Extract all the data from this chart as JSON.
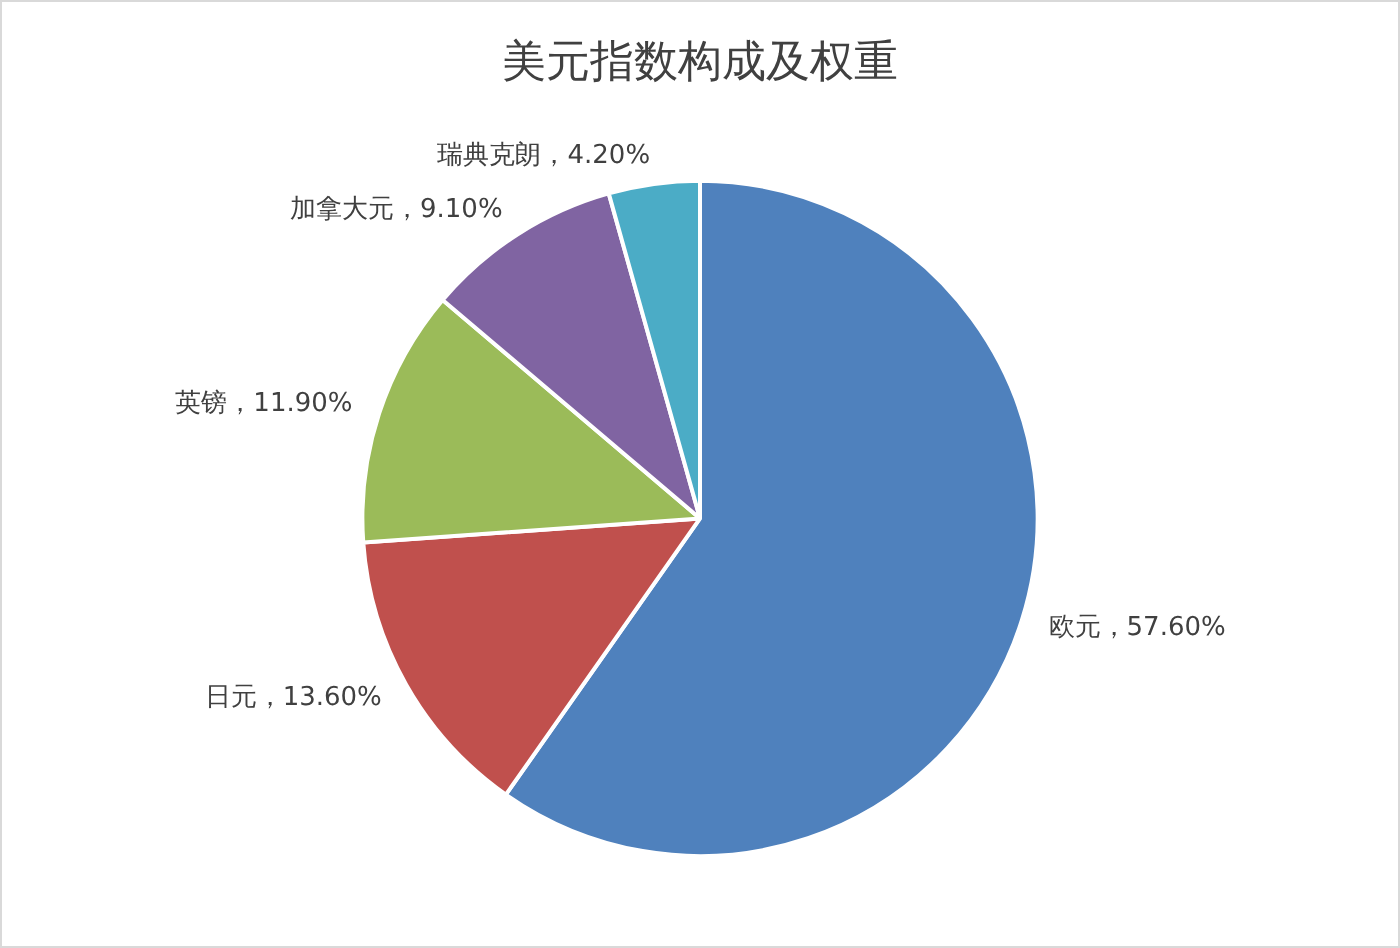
{
  "chart_data": {
    "type": "pie",
    "title": "美元指数构成及权重",
    "categories": [
      "欧元",
      "日元",
      "英镑",
      "加拿大元",
      "瑞典克朗"
    ],
    "values": [
      57.6,
      13.6,
      11.9,
      9.1,
      4.2
    ],
    "colors": [
      "#4f81bd",
      "#c0504d",
      "#9bbb59",
      "#8064a2",
      "#4bacc6"
    ],
    "value_labels": [
      "，57.60%",
      "，13.60%",
      "，11.90%",
      "，9.10%",
      "，4.20%"
    ],
    "legend": false
  }
}
